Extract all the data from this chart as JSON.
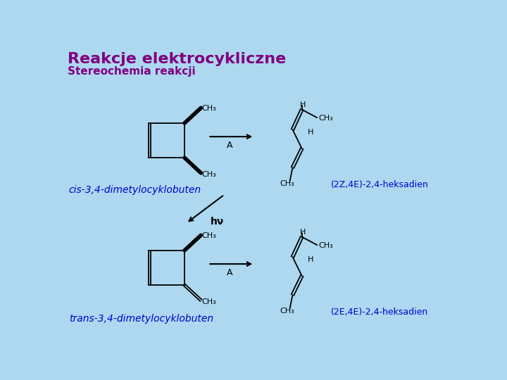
{
  "title": "Reakcje elektrocykliczne",
  "subtitle": "Stereochemia reakcji",
  "bg_color": "#add8f0",
  "title_color": "#800080",
  "subtitle_color": "#800080",
  "label_color": "#0000cd",
  "struct_color": "#000000",
  "arrow_color": "#000000",
  "label_cis": "cis-3,4-dimetylocyklobuten",
  "label_trans": "trans-3,4-dimetylocyklobuten",
  "label_product1": "(2Z,4E)-2,4-heksadien",
  "label_product2": "(2E,4E)-2,4-heksadien",
  "label_A": "A",
  "label_hv": "hν"
}
